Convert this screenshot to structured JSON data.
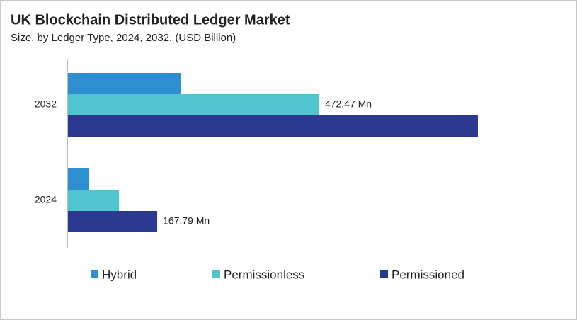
{
  "chart_data": {
    "type": "bar",
    "orientation": "horizontal",
    "title": "UK Blockchain Distributed Ledger Market",
    "subtitle": "Size, by Ledger Type, 2024, 2032, (USD Billion)",
    "categories": [
      "2032",
      "2024"
    ],
    "series": [
      {
        "name": "Hybrid",
        "color": "#2e8fd0",
        "values": [
          211.6,
          40
        ]
      },
      {
        "name": "Permissionless",
        "color": "#4ec5cf",
        "values": [
          472.47,
          95.8
        ],
        "value_labels": [
          "472.47 Mn",
          null
        ]
      },
      {
        "name": "Permissioned",
        "color": "#2b3990",
        "values": [
          770.7,
          167.79
        ],
        "value_labels": [
          null,
          "167.79 Mn"
        ]
      }
    ]
  }
}
